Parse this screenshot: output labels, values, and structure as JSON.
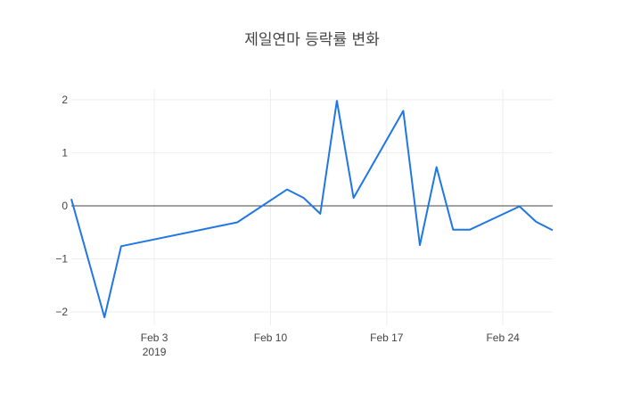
{
  "chart_data": {
    "type": "line",
    "title": "제일연마 등락률 변화",
    "xlabel": "",
    "ylabel": "",
    "x_start": "2019-01-29",
    "x_end": "2019-02-27",
    "ylim": [
      -2.25,
      2.2
    ],
    "y_ticks": [
      -2,
      -1,
      0,
      1,
      2
    ],
    "y_tick_labels": [
      "−2",
      "−1",
      "0",
      "1",
      "2"
    ],
    "x_ticks": [
      {
        "date": "2019-02-03",
        "label": "Feb 3",
        "sublabel": "2019"
      },
      {
        "date": "2019-02-10",
        "label": "Feb 10",
        "sublabel": ""
      },
      {
        "date": "2019-02-17",
        "label": "Feb 17",
        "sublabel": ""
      },
      {
        "date": "2019-02-24",
        "label": "Feb 24",
        "sublabel": ""
      }
    ],
    "grid": true,
    "zero_line": true,
    "series": [
      {
        "color": "#1f77e4",
        "x": [
          "2019-01-29",
          "2019-01-31",
          "2019-02-01",
          "2019-02-08",
          "2019-02-11",
          "2019-02-12",
          "2019-02-13",
          "2019-02-14",
          "2019-02-15",
          "2019-02-18",
          "2019-02-19",
          "2019-02-20",
          "2019-02-21",
          "2019-02-22",
          "2019-02-25",
          "2019-02-26",
          "2019-02-27"
        ],
        "y": [
          0.13,
          -2.1,
          -0.76,
          -0.31,
          0.31,
          0.15,
          -0.15,
          1.98,
          0.15,
          1.79,
          -0.74,
          0.73,
          -0.45,
          -0.45,
          -0.01,
          -0.3,
          -0.46
        ]
      }
    ]
  }
}
